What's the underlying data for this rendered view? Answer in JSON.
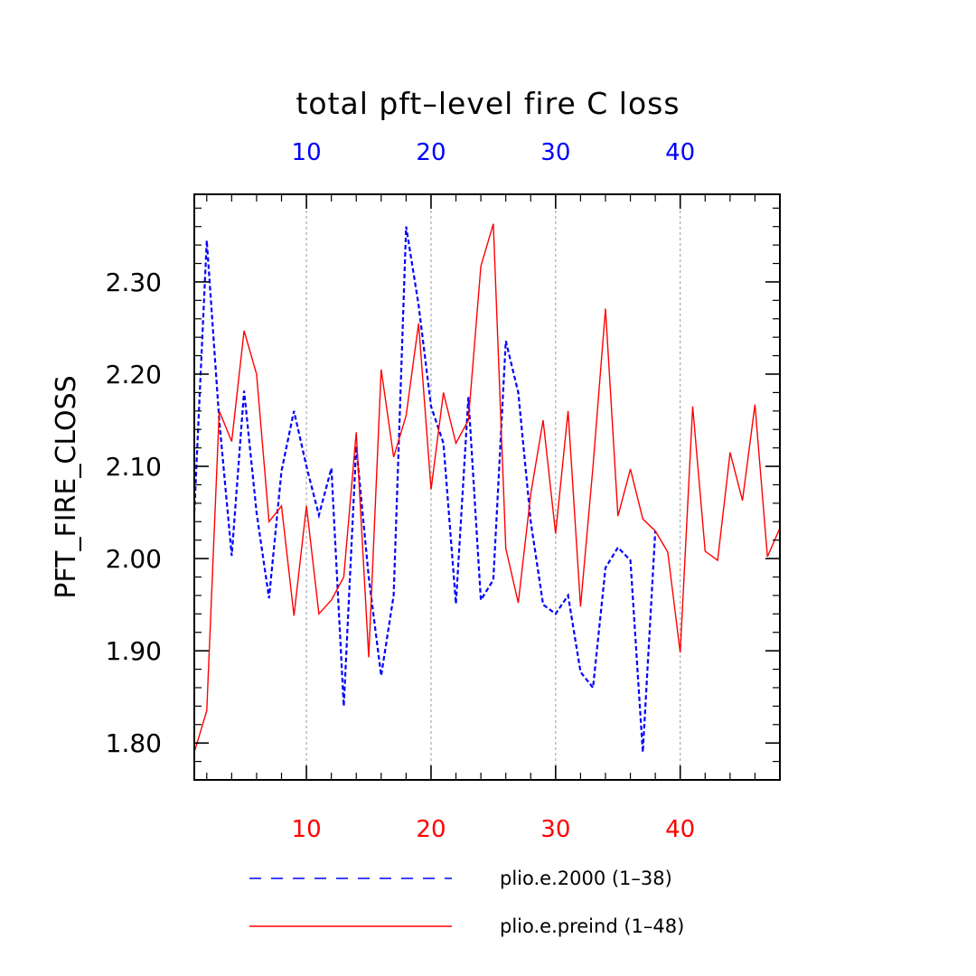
{
  "chart_data": {
    "type": "line",
    "title": "total pft–level fire C loss",
    "xlabel": "",
    "ylabel": "PFT_FIRE_CLOSS",
    "xlim": [
      1,
      48
    ],
    "ylim": [
      1.76,
      2.395
    ],
    "grid": "vertical dashed at 10, 20, 30, 40",
    "yticks": [
      1.8,
      1.9,
      2.0,
      2.1,
      2.2,
      2.3
    ],
    "ytick_labels": [
      "1.80",
      "1.90",
      "2.00",
      "2.10",
      "2.20",
      "2.30"
    ],
    "top_axis": {
      "ticks": [
        10,
        20,
        30,
        40
      ],
      "labels": [
        "10",
        "20",
        "30",
        "40"
      ],
      "color": "#0000ff"
    },
    "bottom_axis": {
      "ticks": [
        10,
        20,
        30,
        40
      ],
      "labels": [
        "10",
        "20",
        "30",
        "40"
      ],
      "color": "#ff0000"
    },
    "legend_position": "bottom",
    "series": [
      {
        "name": "plio.e.2000 (1–38)",
        "color": "#0000ff",
        "style": "dashed",
        "x": [
          1,
          2,
          3,
          4,
          5,
          6,
          7,
          8,
          9,
          10,
          11,
          12,
          13,
          14,
          15,
          16,
          17,
          18,
          19,
          20,
          21,
          22,
          23,
          24,
          25,
          26,
          27,
          28,
          29,
          30,
          31,
          32,
          33,
          34,
          35,
          36,
          37,
          38
        ],
        "values": [
          2.05,
          2.345,
          2.15,
          2.003,
          2.182,
          2.05,
          1.957,
          2.095,
          2.16,
          2.1,
          2.047,
          2.098,
          1.84,
          2.122,
          1.98,
          1.873,
          1.96,
          2.36,
          2.275,
          2.165,
          2.125,
          1.951,
          2.175,
          1.955,
          1.977,
          2.236,
          2.18,
          2.04,
          1.95,
          1.94,
          1.96,
          1.877,
          1.86,
          1.99,
          2.012,
          1.998,
          1.79,
          2.03
        ]
      },
      {
        "name": "plio.e.preind (1–48)",
        "color": "#ff0000",
        "style": "solid",
        "x": [
          1,
          2,
          3,
          4,
          5,
          6,
          7,
          8,
          9,
          10,
          11,
          12,
          13,
          14,
          15,
          16,
          17,
          18,
          19,
          20,
          21,
          22,
          23,
          24,
          25,
          26,
          27,
          28,
          29,
          30,
          31,
          32,
          33,
          34,
          35,
          36,
          37,
          38,
          39,
          40,
          41,
          42,
          43,
          44,
          45,
          46,
          47,
          48
        ],
        "values": [
          1.79,
          1.835,
          2.16,
          2.127,
          2.247,
          2.2,
          2.04,
          2.057,
          1.938,
          2.057,
          1.94,
          1.955,
          1.98,
          2.137,
          1.893,
          2.205,
          2.11,
          2.155,
          2.255,
          2.075,
          2.18,
          2.125,
          2.15,
          2.317,
          2.363,
          2.011,
          1.952,
          2.07,
          2.15,
          2.027,
          2.16,
          1.948,
          2.1,
          2.271,
          2.046,
          2.097,
          2.043,
          2.03,
          2.007,
          1.898,
          2.165,
          2.008,
          1.998,
          2.115,
          2.063,
          2.167,
          2.002,
          2.033
        ]
      }
    ]
  }
}
